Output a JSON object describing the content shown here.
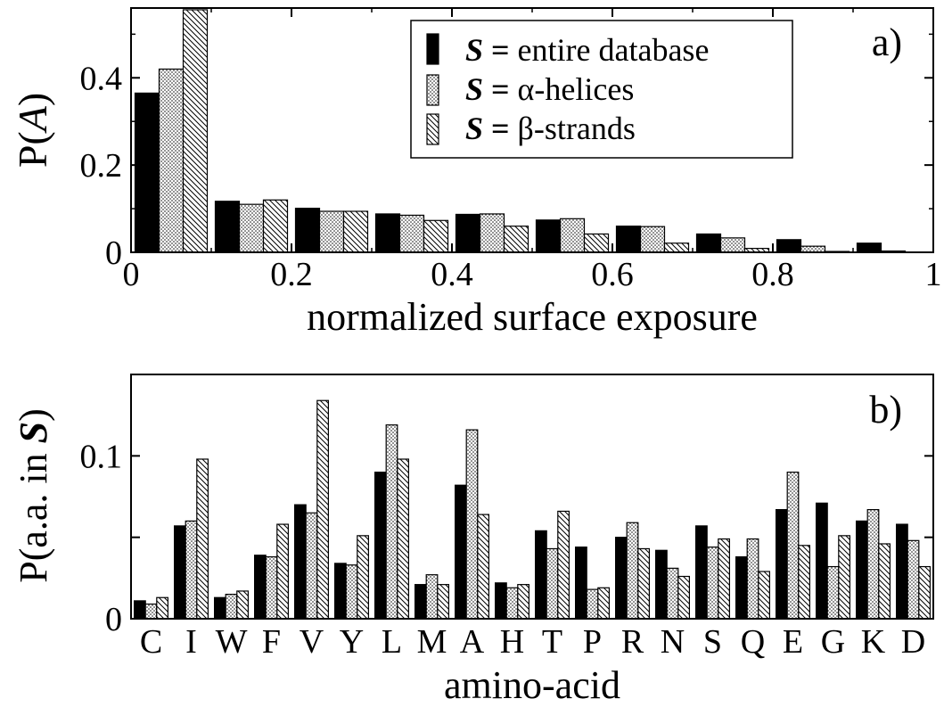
{
  "chart_data": [
    {
      "type": "bar",
      "panel_label": "a)",
      "xlabel": "normalized surface exposure",
      "ylabel": "P(",
      "ylabel_var": "A",
      "ylabel_close": ")",
      "xlim": [
        0,
        1
      ],
      "ylim": [
        0,
        0.56
      ],
      "xticks": [
        0,
        0.2,
        0.4,
        0.6,
        0.8,
        1
      ],
      "xtick_labels": [
        "0",
        "0.2",
        "0.4",
        "0.6",
        "0.8",
        "1"
      ],
      "yticks": [
        0,
        0.2,
        0.4
      ],
      "ytick_labels": [
        "0",
        "0.2",
        "0.4"
      ],
      "bin_starts": [
        0,
        0.1,
        0.2,
        0.3,
        0.4,
        0.5,
        0.6,
        0.7,
        0.8,
        0.9
      ],
      "bin_width": 0.1,
      "legend_position": "top-right",
      "series": [
        {
          "name": "entire database",
          "symbol": "S",
          "eq": " = ",
          "fill": "solid",
          "values": [
            0.365,
            0.117,
            0.101,
            0.088,
            0.087,
            0.074,
            0.06,
            0.042,
            0.029,
            0.021
          ]
        },
        {
          "name": "α-helices",
          "symbol": "S",
          "eq": " = ",
          "fill": "dots",
          "values": [
            0.42,
            0.11,
            0.094,
            0.085,
            0.088,
            0.077,
            0.059,
            0.033,
            0.014,
            0.003
          ]
        },
        {
          "name": "β-strands",
          "symbol": "S",
          "eq": " = ",
          "fill": "hatch",
          "values": [
            0.556,
            0.12,
            0.094,
            0.073,
            0.06,
            0.042,
            0.021,
            0.009,
            0.002,
            0.0
          ]
        }
      ]
    },
    {
      "type": "bar",
      "panel_label": "b)",
      "xlabel": "amino-acid",
      "ylabel": "P(a.a. in ",
      "ylabel_var": "S",
      "ylabel_close": ")",
      "ylim": [
        0,
        0.15
      ],
      "yticks": [
        0,
        0.05,
        0.1
      ],
      "ytick_labels": [
        "0",
        "",
        "0.1"
      ],
      "categories": [
        "C",
        "I",
        "W",
        "F",
        "V",
        "Y",
        "L",
        "M",
        "A",
        "H",
        "T",
        "P",
        "R",
        "N",
        "S",
        "Q",
        "E",
        "G",
        "K",
        "D"
      ],
      "series": [
        {
          "name": "entire database",
          "fill": "solid",
          "values": [
            0.011,
            0.057,
            0.013,
            0.039,
            0.07,
            0.034,
            0.09,
            0.021,
            0.082,
            0.022,
            0.054,
            0.044,
            0.05,
            0.042,
            0.057,
            0.038,
            0.067,
            0.071,
            0.06,
            0.058
          ]
        },
        {
          "name": "α-helices",
          "fill": "dots",
          "values": [
            0.009,
            0.06,
            0.015,
            0.038,
            0.065,
            0.033,
            0.119,
            0.027,
            0.116,
            0.019,
            0.043,
            0.018,
            0.059,
            0.031,
            0.044,
            0.049,
            0.09,
            0.032,
            0.067,
            0.048
          ]
        },
        {
          "name": "β-strands",
          "fill": "hatch",
          "values": [
            0.013,
            0.098,
            0.017,
            0.058,
            0.134,
            0.051,
            0.098,
            0.021,
            0.064,
            0.021,
            0.066,
            0.019,
            0.043,
            0.026,
            0.049,
            0.029,
            0.045,
            0.051,
            0.046,
            0.032
          ]
        }
      ]
    }
  ]
}
